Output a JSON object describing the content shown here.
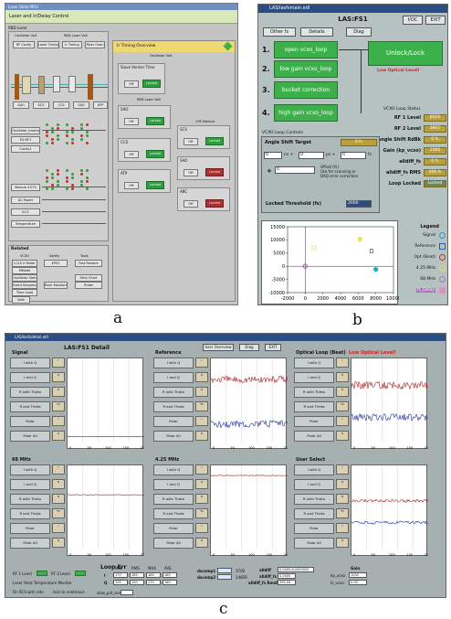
{
  "labels": {
    "a": "a",
    "b": "b",
    "c": "c"
  },
  "panel_a": {
    "window_title": "Laser State MCU",
    "header": "Laser and Ir/Delay Control",
    "rbd_laser": "RBD Laser",
    "osc_title": "Oscillator Volt",
    "rbd_volt": "RBD Laser Volt",
    "buttons": [
      "RF Cavity",
      "Laser Timing",
      "Ir Timing",
      "Fiber Oven"
    ],
    "left_list": [
      "Oscillator_Interlock",
      "ES-RF1",
      "Cavity1",
      "Modulo 4 ETS",
      "AC Power",
      "ILC1",
      "Temperature"
    ],
    "related": "Related",
    "related_cols": [
      "VCXO",
      "Safety",
      "Tools"
    ],
    "related_btns": [
      "LCLS Ir Meter",
      "MMode",
      "Oscillator Status",
      "Event Sequencer",
      "Time Load",
      "Safe",
      "EPS1",
      "Rack Monitors",
      "Fast Restore",
      "Strip Chart",
      "Probe"
    ],
    "status_title": "Ir Timing Overview",
    "status_sub": "Oscillator Volt",
    "subpanel_labels": [
      "Slave Vernier Time",
      "RBD Laser Volt",
      "SECS",
      "CPS Monitor"
    ],
    "row_labels": [
      "SAO",
      "SCS",
      "CCS",
      "SAO",
      "ATP",
      "ABC"
    ],
    "on_label": "Off",
    "ok_label": "Locked"
  },
  "panel_b": {
    "window_title": "LAS/lasfsmain.edl",
    "title": "LAS:FS1",
    "tabs": [
      "Other fs",
      "Details",
      "Diag"
    ],
    "corner_btns": [
      "I/OC",
      "EXIT"
    ],
    "loops": [
      {
        "num": "1.",
        "label": "open vcxo_loop"
      },
      {
        "num": "2.",
        "label": "low gain vcxo_loop"
      },
      {
        "num": "3.",
        "label": "bucket correction"
      },
      {
        "num": "4.",
        "label": "high gain vcxo_loop"
      }
    ],
    "unlock_label": "Unlock/Lock",
    "low_optical": "Low Optical Level!",
    "status_title": "VCXO Loop Status",
    "status_rows": [
      {
        "label": "RF 1 Level",
        "value": "6020"
      },
      {
        "label": "RF 2 Level",
        "value": "3807"
      },
      {
        "label": "Angle Shift RdBk",
        "value": "0 fs"
      },
      {
        "label": "Gain (kp_vcxo)",
        "value": "1000"
      },
      {
        "label": "alldiff_fs",
        "value": "0 fs"
      },
      {
        "label": "alldiff_fs RMS",
        "value": "306 fs"
      },
      {
        "label": "Loop Locked",
        "value": "Locked"
      }
    ],
    "ctl_title": "VCXO Loop Controls",
    "angle_label": "Angle Shift Target",
    "angle_value": "0 fs",
    "ns_unit": "ns +",
    "ps_unit": "ps +",
    "fs_unit": "fs",
    "zero": "0",
    "offset_note": "Offset (fs)\nUse for scanning or\nDAQ error correction",
    "threshold_label": "Locked Threshold (fs)",
    "threshold_value": "2000",
    "legend_title": "Legend",
    "legend": [
      {
        "label": "Signal",
        "color": "#20a0c0",
        "shape": "circle"
      },
      {
        "label": "Reference",
        "color": "#2060c0",
        "shape": "square"
      },
      {
        "label": "Opt (Beat)",
        "color": "#c03030",
        "shape": "circle"
      },
      {
        "label": "4.25 MHz",
        "color": "#e8e060",
        "shape": "circle"
      },
      {
        "label": "68 MHz",
        "color": "#b070c0",
        "shape": "circle"
      },
      {
        "label": "fs_Delay",
        "color": "#e090c0",
        "shape": "square"
      }
    ]
  },
  "panel_c": {
    "window_title": "LAS/lasfsdetail.edl",
    "title": "LAS:FS1 Detail",
    "buttons": [
      "User Overview",
      "Diag",
      "EXIT"
    ],
    "sections": [
      "Signal",
      "Reference",
      "Optical Loop (Beat)",
      "68 MHz",
      "4.25 MHz",
      "User Select"
    ],
    "low_optical": "Low Optical Level!",
    "side_buttons": [
      "I with Q",
      "I and Q",
      "R with Theta",
      "R and Theta",
      "Polar",
      "Polar All"
    ],
    "ind_labels": [
      "I",
      "Q",
      "R",
      "Th"
    ],
    "loop_err": "Loop Err",
    "loop_cols": [
      "MIN",
      "RMS",
      "MAX",
      "AVE"
    ],
    "loop_rows": [
      {
        "label": "I",
        "vals": [
          "170",
          "185",
          "185",
          "185"
        ]
      },
      {
        "label": "Q",
        "vals": [
          "100",
          "150",
          "170",
          "160"
        ]
      }
    ],
    "slow_labels": [
      "slow_pid_sen",
      "slow_pid_gain"
    ],
    "dscomp": [
      {
        "label": "dscomp1",
        "value": "3700"
      },
      {
        "label": "dscomp2",
        "value": "24859"
      }
    ],
    "alldiff_labels": [
      "alldiff",
      "alldiff_fs",
      "alldiff_fs Rms0"
    ],
    "alldiff_vals": [
      "0.0000-8.0000000",
      "0.0000",
      "395.04"
    ],
    "gain_title": "Gain",
    "gain_rows": [
      {
        "label": "kp_vcxo",
        "value": "1000"
      },
      {
        "label": "ki_vcxo",
        "value": "0.00"
      }
    ],
    "bottom_labels": [
      "RF 1 Level",
      "RF 2 Level",
      "Laser Heat Temperature Monitor",
      "On RCS with ride",
      "lock to renitinace"
    ],
    "x_ticks": [
      "0",
      "50",
      "100",
      "150",
      "200"
    ]
  },
  "chart_data": {
    "type": "scatter",
    "title": "",
    "xlabel": "",
    "ylabel": "",
    "xlim": [
      -2000,
      10000
    ],
    "ylim": [
      -10000,
      15000
    ],
    "x_ticks": [
      -2000,
      0,
      2000,
      4000,
      6000,
      8000,
      10000
    ],
    "y_ticks": [
      -10000,
      -5000,
      0,
      5000,
      10000,
      15000
    ],
    "grid": false,
    "series": [
      {
        "name": "Signal",
        "color": "#20a0c0",
        "points": [
          [
            8000,
            -1200
          ]
        ]
      },
      {
        "name": "Opt (Beat)",
        "color": "#c03030",
        "points": [
          [
            0,
            0
          ]
        ]
      },
      {
        "name": "4.25 MHz",
        "color": "#e8e060",
        "points": [
          [
            1000,
            7000
          ],
          [
            6200,
            10300
          ]
        ]
      },
      {
        "name": "68 MHz",
        "color": "#b070c0",
        "points": [
          [
            0,
            0
          ]
        ]
      },
      {
        "name": "Reference",
        "color": "#2060c0",
        "points": [
          [
            7500,
            5800
          ]
        ]
      }
    ]
  }
}
